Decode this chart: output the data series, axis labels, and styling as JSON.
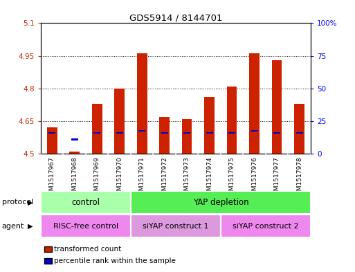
{
  "title": "GDS5914 / 8144701",
  "samples": [
    "GSM1517967",
    "GSM1517968",
    "GSM1517969",
    "GSM1517970",
    "GSM1517971",
    "GSM1517972",
    "GSM1517973",
    "GSM1517974",
    "GSM1517975",
    "GSM1517976",
    "GSM1517977",
    "GSM1517978"
  ],
  "red_values": [
    4.62,
    4.51,
    4.73,
    4.8,
    4.96,
    4.67,
    4.66,
    4.76,
    4.81,
    4.96,
    4.93,
    4.73
  ],
  "blue_values": [
    4.595,
    4.565,
    4.595,
    4.595,
    4.605,
    4.595,
    4.595,
    4.595,
    4.595,
    4.605,
    4.595,
    4.595
  ],
  "ylim_left": [
    4.5,
    5.1
  ],
  "ylim_right": [
    0,
    100
  ],
  "yticks_left": [
    4.5,
    4.65,
    4.8,
    4.95,
    5.1
  ],
  "yticks_right": [
    0,
    25,
    50,
    75,
    100
  ],
  "ytick_labels_left": [
    "4.5",
    "4.65",
    "4.8",
    "4.95",
    "5.1"
  ],
  "ytick_labels_right": [
    "0",
    "25",
    "50",
    "75",
    "100%"
  ],
  "bar_bottom": 4.5,
  "bar_width": 0.45,
  "red_color": "#cc2200",
  "blue_color": "#0000cc",
  "protocol_labels": [
    "control",
    "YAP depletion"
  ],
  "protocol_color_control": "#aaffaa",
  "protocol_color_yap": "#55ee55",
  "agent_labels": [
    "RISC-free control",
    "siYAP construct 1",
    "siYAP construct 2"
  ],
  "agent_color1": "#ee88ee",
  "agent_color2": "#dd99dd",
  "xlabel_protocol": "protocol",
  "xlabel_agent": "agent",
  "legend_red": "transformed count",
  "legend_blue": "percentile rank within the sample",
  "bg_color": "#d8d8d8",
  "plot_bg": "#ffffff",
  "grid_yticks": [
    4.65,
    4.8,
    4.95
  ]
}
